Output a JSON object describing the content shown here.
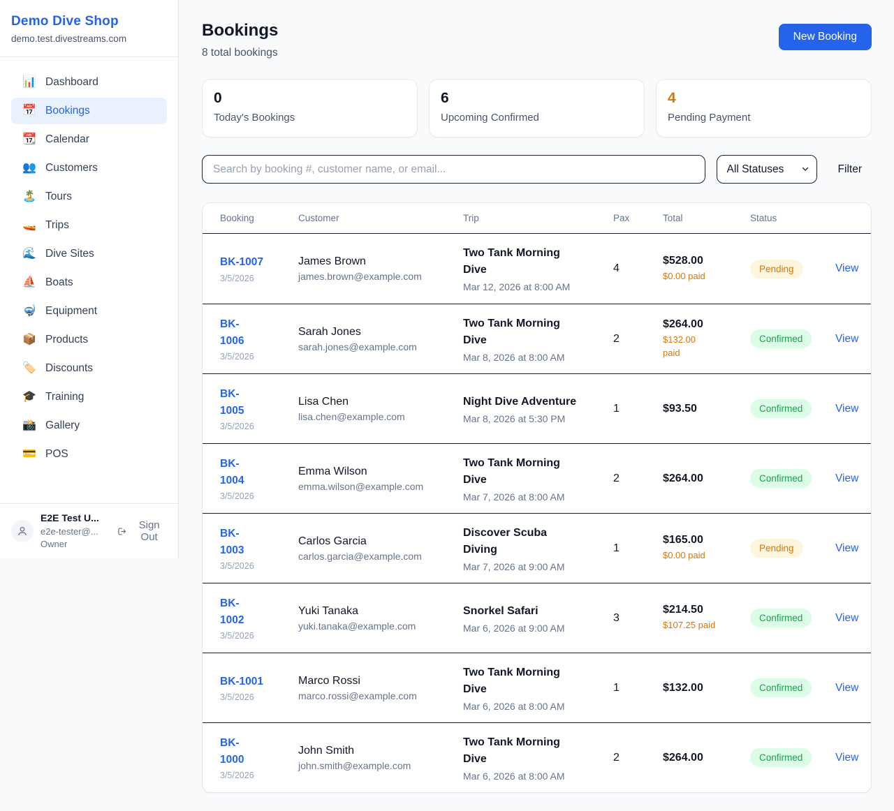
{
  "app": {
    "name": "Demo Dive Shop",
    "domain": "demo.test.divestreams.com"
  },
  "sidebar": {
    "items": [
      {
        "label": "Dashboard",
        "icon": "📊",
        "active": false
      },
      {
        "label": "Bookings",
        "icon": "📅",
        "active": true
      },
      {
        "label": "Calendar",
        "icon": "📆",
        "active": false
      },
      {
        "label": "Customers",
        "icon": "👥",
        "active": false
      },
      {
        "label": "Tours",
        "icon": "🏝️",
        "active": false
      },
      {
        "label": "Trips",
        "icon": "🚤",
        "active": false
      },
      {
        "label": "Dive Sites",
        "icon": "🌊",
        "active": false
      },
      {
        "label": "Boats",
        "icon": "⛵",
        "active": false
      },
      {
        "label": "Equipment",
        "icon": "🤿",
        "active": false
      },
      {
        "label": "Products",
        "icon": "📦",
        "active": false
      },
      {
        "label": "Discounts",
        "icon": "🏷️",
        "active": false
      },
      {
        "label": "Training",
        "icon": "🎓",
        "active": false
      },
      {
        "label": "Gallery",
        "icon": "📸",
        "active": false
      },
      {
        "label": "POS",
        "icon": "💳",
        "active": false
      }
    ],
    "user": {
      "name": "E2E Test U...",
      "email": "e2e-tester@...",
      "role": "Owner",
      "sign_out_label": "Sign Out"
    }
  },
  "header": {
    "title": "Bookings",
    "subtitle": "8 total bookings",
    "new_booking_label": "New Booking"
  },
  "stats": [
    {
      "value": "0",
      "label": "Today's Bookings",
      "accent": false
    },
    {
      "value": "6",
      "label": "Upcoming Confirmed",
      "accent": false
    },
    {
      "value": "4",
      "label": "Pending Payment",
      "accent": true
    }
  ],
  "filters": {
    "search_placeholder": "Search by booking #, customer name, or email...",
    "status_selected": "All Statuses",
    "filter_label": "Filter"
  },
  "table": {
    "columns": [
      "Booking",
      "Customer",
      "Trip",
      "Pax",
      "Total",
      "Status"
    ],
    "rows": [
      {
        "id_display": "BK-1007",
        "date": "3/5/2026",
        "customer": "James Brown",
        "email": "james.brown@example.com",
        "trip_display": "Two Tank Morning\nDive",
        "trip_when": "Mar 12, 2026 at 8:00 AM",
        "pax": "4",
        "total": "$528.00",
        "paid_display": "$0.00 paid",
        "status": "Pending",
        "action": "View"
      },
      {
        "id_display": "BK-\n1006",
        "date": "3/5/2026",
        "customer": "Sarah Jones",
        "email": "sarah.jones@example.com",
        "trip_display": "Two Tank Morning\nDive",
        "trip_when": "Mar 8, 2026 at 8:00 AM",
        "pax": "2",
        "total": "$264.00",
        "paid_display": "$132.00\npaid",
        "status": "Confirmed",
        "action": "View"
      },
      {
        "id_display": "BK-\n1005",
        "date": "3/5/2026",
        "customer": "Lisa Chen",
        "email": "lisa.chen@example.com",
        "trip_display": "Night Dive Adventure",
        "trip_when": "Mar 8, 2026 at 5:30 PM",
        "pax": "1",
        "total": "$93.50",
        "paid_display": "",
        "status": "Confirmed",
        "action": "View"
      },
      {
        "id_display": "BK-\n1004",
        "date": "3/5/2026",
        "customer": "Emma Wilson",
        "email": "emma.wilson@example.com",
        "trip_display": "Two Tank Morning\nDive",
        "trip_when": "Mar 7, 2026 at 8:00 AM",
        "pax": "2",
        "total": "$264.00",
        "paid_display": "",
        "status": "Confirmed",
        "action": "View"
      },
      {
        "id_display": "BK-\n1003",
        "date": "3/5/2026",
        "customer": "Carlos Garcia",
        "email": "carlos.garcia@example.com",
        "trip_display": "Discover Scuba\nDiving",
        "trip_when": "Mar 7, 2026 at 9:00 AM",
        "pax": "1",
        "total": "$165.00",
        "paid_display": "$0.00 paid",
        "status": "Pending",
        "action": "View"
      },
      {
        "id_display": "BK-\n1002",
        "date": "3/5/2026",
        "customer": "Yuki Tanaka",
        "email": "yuki.tanaka@example.com",
        "trip_display": "Snorkel Safari",
        "trip_when": "Mar 6, 2026 at 9:00 AM",
        "pax": "3",
        "total": "$214.50",
        "paid_display": "$107.25 paid",
        "status": "Confirmed",
        "action": "View"
      },
      {
        "id_display": "BK-1001",
        "date": "3/5/2026",
        "customer": "Marco Rossi",
        "email": "marco.rossi@example.com",
        "trip_display": "Two Tank Morning\nDive",
        "trip_when": "Mar 6, 2026 at 8:00 AM",
        "pax": "1",
        "total": "$132.00",
        "paid_display": "",
        "status": "Confirmed",
        "action": "View"
      },
      {
        "id_display": "BK-\n1000",
        "date": "3/5/2026",
        "customer": "John Smith",
        "email": "john.smith@example.com",
        "trip_display": "Two Tank Morning\nDive",
        "trip_when": "Mar 6, 2026 at 8:00 AM",
        "pax": "2",
        "total": "$264.00",
        "paid_display": "",
        "status": "Confirmed",
        "action": "View"
      }
    ]
  },
  "colors": {
    "accent_blue": "#2563eb",
    "pending_text": "#d97706",
    "pending_bg": "#fdf5dc",
    "confirmed_text": "#16a34a",
    "confirmed_bg": "#dcfce7",
    "page_bg": "#f8fafc"
  }
}
